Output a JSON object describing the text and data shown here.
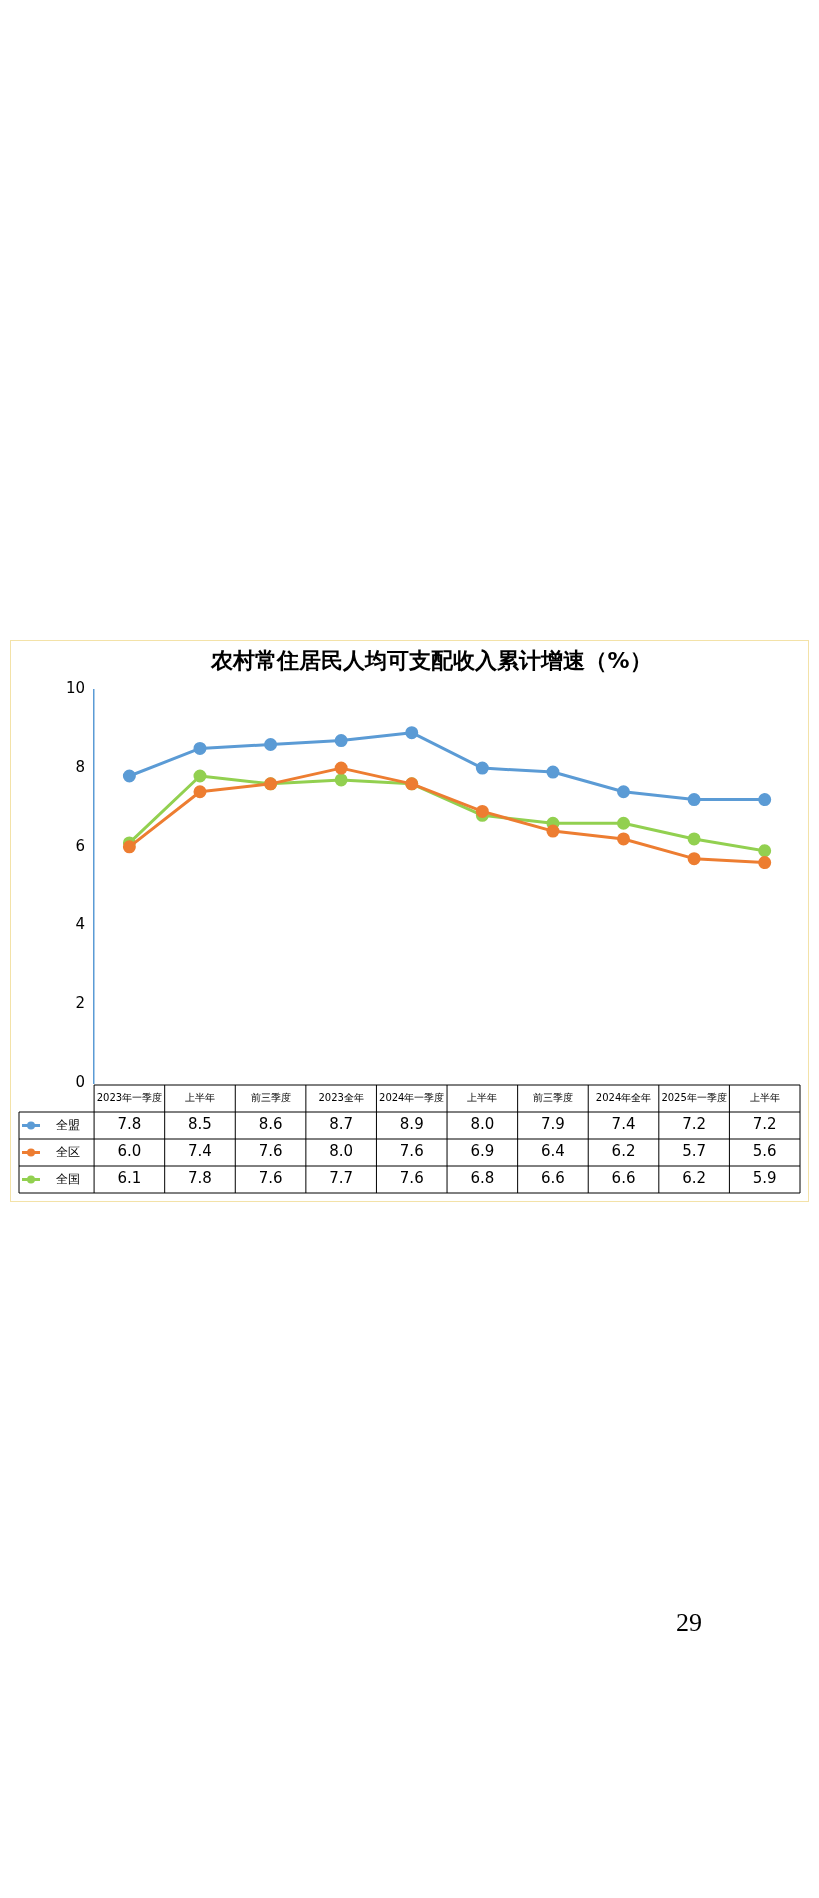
{
  "chart_data": {
    "type": "line",
    "title": "农村常住居民人均可支配收入累计增速（%）",
    "categories": [
      "2023年一季度",
      "上半年",
      "前三季度",
      "2023全年",
      "2024年一季度",
      "上半年",
      "前三季度",
      "2024年全年",
      "2025年一季度",
      "上半年"
    ],
    "series": [
      {
        "name": "全盟",
        "color": "#5b9bd5",
        "values": [
          7.8,
          8.5,
          8.6,
          8.7,
          8.9,
          8.0,
          7.9,
          7.4,
          7.2,
          7.2
        ],
        "value_labels": [
          "7.8",
          "8.5",
          "8.6",
          "8.7",
          "8.9",
          "8.0",
          "7.9",
          "7.4",
          "7.2",
          "7.2"
        ]
      },
      {
        "name": "全区",
        "color": "#ed7d31",
        "values": [
          6.0,
          7.4,
          7.6,
          8.0,
          7.6,
          6.9,
          6.4,
          6.2,
          5.7,
          5.6
        ],
        "value_labels": [
          "6.0",
          "7.4",
          "7.6",
          "8.0",
          "7.6",
          "6.9",
          "6.4",
          "6.2",
          "5.7",
          "5.6"
        ]
      },
      {
        "name": "全国",
        "color": "#92d050",
        "values": [
          6.1,
          7.8,
          7.6,
          7.7,
          7.6,
          6.8,
          6.6,
          6.6,
          6.2,
          5.9
        ],
        "value_labels": [
          "6.1",
          "7.8",
          "7.6",
          "7.7",
          "7.6",
          "6.8",
          "6.6",
          "6.6",
          "6.2",
          "5.9"
        ]
      }
    ],
    "ylim": [
      0,
      10
    ],
    "yticks": [
      0,
      2,
      4,
      6,
      8,
      10
    ],
    "grid": false,
    "legend": "bottom left",
    "marker": "circle",
    "line_style": "solid",
    "annotations": [
      "29"
    ]
  }
}
